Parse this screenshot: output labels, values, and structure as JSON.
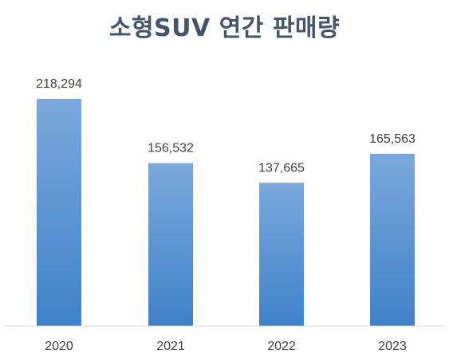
{
  "chart_data": {
    "type": "bar",
    "title": "소형SUV 연간 판매량",
    "categories": [
      "2020",
      "2021",
      "2022",
      "2023"
    ],
    "values": [
      218294,
      156532,
      137665,
      165563
    ],
    "value_labels": [
      "218,294",
      "156,532",
      "137,665",
      "165,563"
    ],
    "ylim": [
      0,
      218294
    ],
    "grid": false,
    "legend": "none",
    "colors": {
      "bar_top": "#7aa9dc",
      "bar_bottom": "#3f82c8",
      "axis": "#d9d9d9",
      "title": "#44546a",
      "text": "#404040"
    }
  }
}
